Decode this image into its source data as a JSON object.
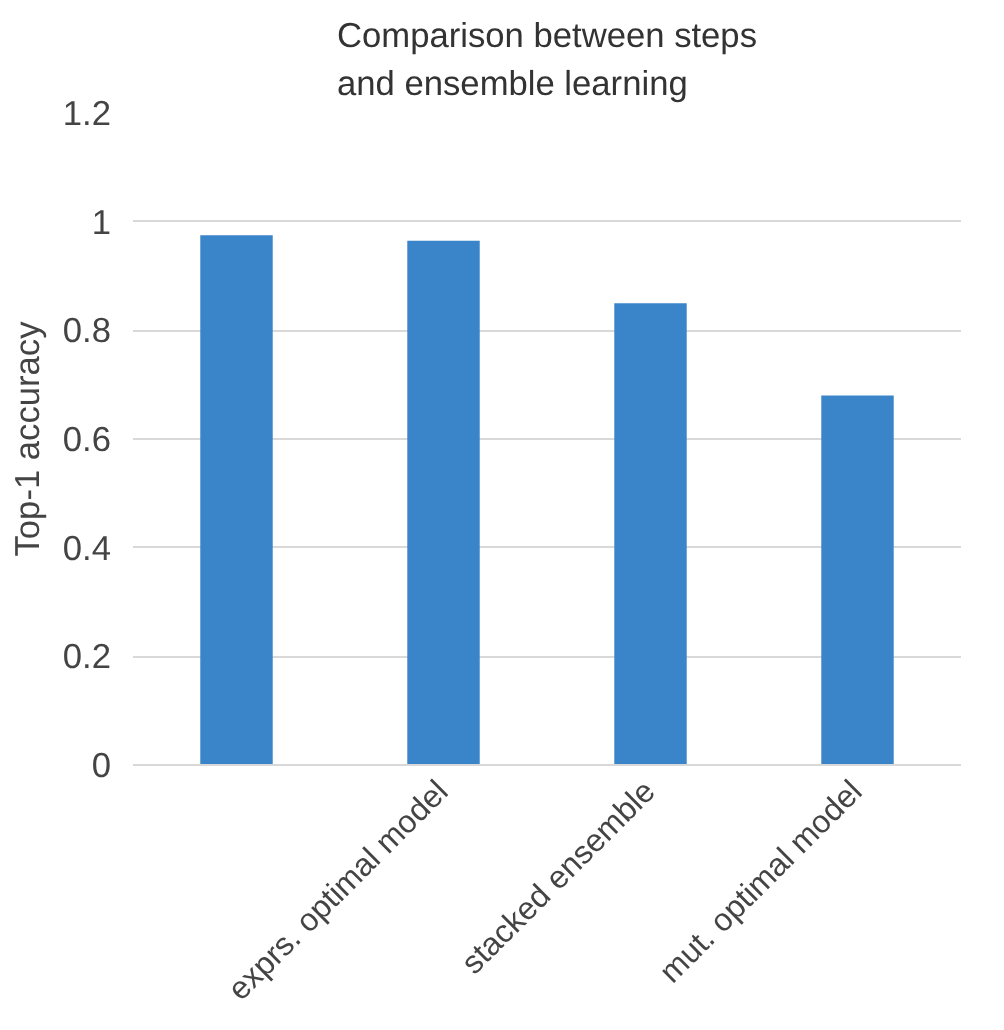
{
  "chart_data": {
    "type": "bar",
    "title": "Comparison between steps\nand ensemble learning",
    "ylabel": "Top-1 accuracy",
    "categories": [
      null,
      "exprs. optimal model",
      "stacked ensemble",
      "mut. optimal model"
    ],
    "values": [
      0.975,
      0.965,
      0.85,
      0.68
    ],
    "color": "#3a85c9",
    "ylim": [
      0,
      1.2
    ],
    "yticks": [
      0,
      0.2,
      0.4,
      0.6,
      0.8,
      1,
      1.2
    ],
    "grid": "y"
  }
}
